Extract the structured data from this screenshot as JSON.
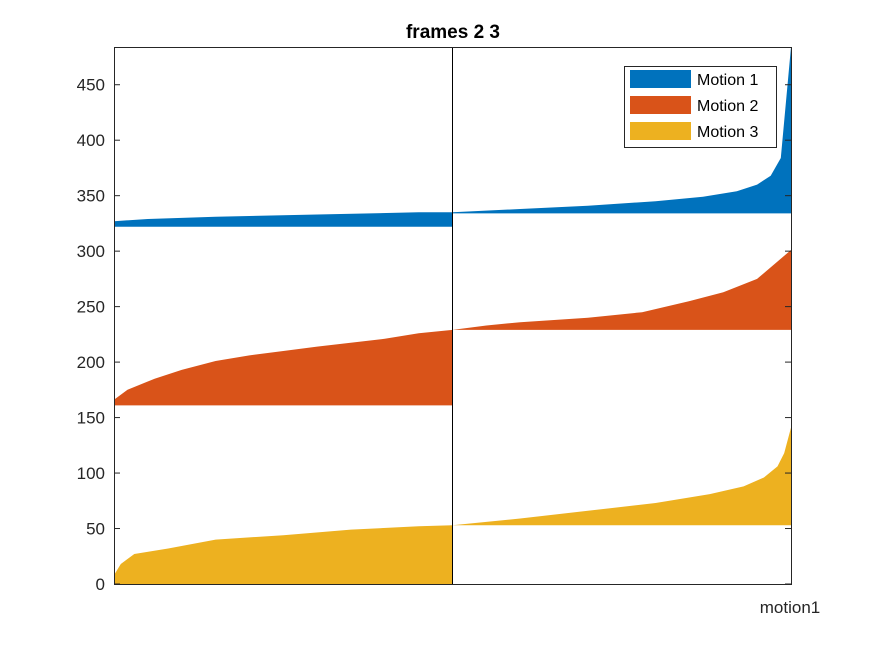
{
  "chart_data": {
    "type": "area",
    "title": "frames 2 3",
    "xlabel": "motion1",
    "ylabel": "",
    "ylim": [
      0,
      484
    ],
    "yticks": [
      0,
      50,
      100,
      150,
      200,
      250,
      300,
      350,
      400,
      450
    ],
    "ytick_labels": [
      "0",
      "50",
      "100",
      "150",
      "200",
      "250",
      "300",
      "350",
      "400",
      "450"
    ],
    "x_range": [
      0,
      1
    ],
    "divider_x": 0.5,
    "grid": false,
    "legend_position": "top-right",
    "series": [
      {
        "name": "Motion 1",
        "color": "#0072BD",
        "segments": [
          {
            "x": [
              0.0,
              0.05,
              0.15,
              0.3,
              0.45,
              0.5
            ],
            "lower": [
              322,
              322,
              322,
              322,
              322,
              322
            ],
            "upper": [
              327,
              329,
              331,
              333,
              335,
              335
            ]
          },
          {
            "x": [
              0.5,
              0.6,
              0.7,
              0.8,
              0.87,
              0.92,
              0.95,
              0.97,
              0.985,
              1.0
            ],
            "lower": [
              334,
              334,
              334,
              334,
              334,
              334,
              334,
              334,
              334,
              334
            ],
            "upper": [
              335,
              338,
              341,
              345,
              349,
              354,
              360,
              368,
              384,
              484
            ]
          }
        ]
      },
      {
        "name": "Motion 2",
        "color": "#D95319",
        "segments": [
          {
            "x": [
              0.0,
              0.02,
              0.06,
              0.1,
              0.15,
              0.2,
              0.25,
              0.3,
              0.4,
              0.45,
              0.5
            ],
            "lower": [
              161,
              161,
              161,
              161,
              161,
              161,
              161,
              161,
              161,
              161,
              161
            ],
            "upper": [
              166,
              175,
              185,
              193,
              201,
              206,
              210,
              214,
              221,
              226,
              229
            ]
          },
          {
            "x": [
              0.5,
              0.55,
              0.6,
              0.7,
              0.78,
              0.85,
              0.9,
              0.95,
              1.0
            ],
            "lower": [
              229,
              229,
              229,
              229,
              229,
              229,
              229,
              229,
              229
            ],
            "upper": [
              229,
              233,
              236,
              240,
              245,
              255,
              263,
              275,
              301
            ]
          }
        ]
      },
      {
        "name": "Motion 3",
        "color": "#EDB120",
        "segments": [
          {
            "x": [
              0.0,
              0.01,
              0.03,
              0.08,
              0.15,
              0.25,
              0.35,
              0.45,
              0.5
            ],
            "lower": [
              0,
              0,
              0,
              0,
              0,
              0,
              0,
              0,
              0
            ],
            "upper": [
              8,
              18,
              27,
              32,
              40,
              44,
              49,
              52,
              53
            ]
          },
          {
            "x": [
              0.5,
              0.6,
              0.7,
              0.8,
              0.88,
              0.93,
              0.96,
              0.98,
              0.99,
              1.0
            ],
            "lower": [
              53,
              53,
              53,
              53,
              53,
              53,
              53,
              53,
              53,
              53
            ],
            "upper": [
              53,
              59,
              66,
              73,
              81,
              88,
              96,
              106,
              118,
              141
            ]
          }
        ]
      }
    ]
  }
}
